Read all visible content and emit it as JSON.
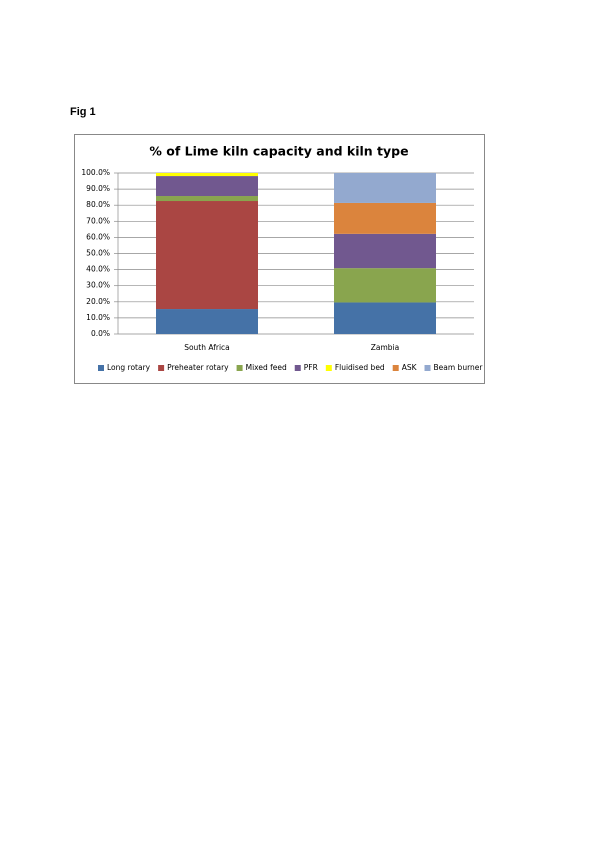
{
  "document": {
    "label": "Fig 1"
  },
  "chart_data": {
    "type": "stacked-bar",
    "title": "% of Lime kiln capacity and kiln type",
    "categories": [
      "South Africa",
      "Zambia"
    ],
    "series": [
      {
        "name": "Long rotary",
        "color": "#4572a7",
        "values": [
          15.5,
          19.6
        ]
      },
      {
        "name": "Preheater rotary",
        "color": "#aa4643",
        "values": [
          67.1,
          0
        ]
      },
      {
        "name": "Mixed feed",
        "color": "#89a54e",
        "values": [
          3.1,
          21.3
        ]
      },
      {
        "name": "PFR",
        "color": "#71588f",
        "values": [
          12.4,
          21.3
        ]
      },
      {
        "name": "Fluidised bed",
        "color": "#ffff00",
        "values": [
          1.9,
          0
        ]
      },
      {
        "name": "ASK",
        "color": "#db843d",
        "values": [
          0,
          19.2
        ]
      },
      {
        "name": "Beam burner",
        "color": "#93a9cf",
        "values": [
          0,
          18.6
        ]
      }
    ],
    "ylim": [
      0,
      100
    ],
    "yticks": [
      {
        "value": 0,
        "label": "0.0%"
      },
      {
        "value": 10,
        "label": "10.0%"
      },
      {
        "value": 20,
        "label": "20.0%"
      },
      {
        "value": 30,
        "label": "30.0%"
      },
      {
        "value": 40,
        "label": "40.0%"
      },
      {
        "value": 50,
        "label": "50.0%"
      },
      {
        "value": 60,
        "label": "60.0%"
      },
      {
        "value": 70,
        "label": "70.0%"
      },
      {
        "value": 80,
        "label": "80.0%"
      },
      {
        "value": 90,
        "label": "90.0%"
      },
      {
        "value": 100,
        "label": "100.0%"
      }
    ],
    "grid": true,
    "legend": "bottom"
  }
}
